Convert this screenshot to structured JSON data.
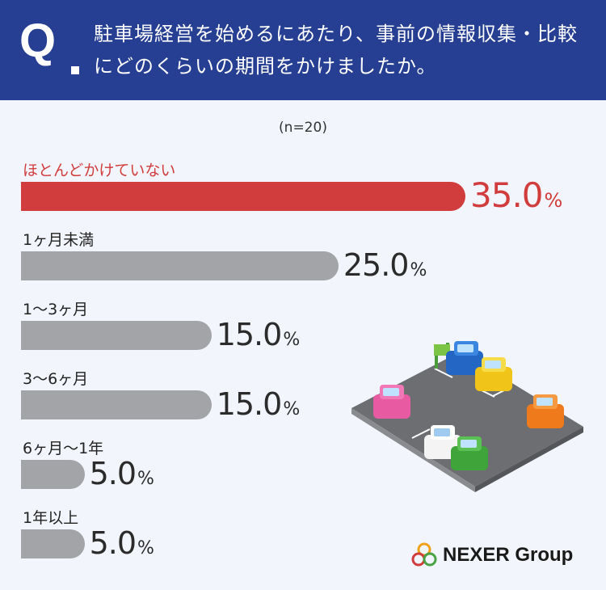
{
  "header": {
    "q_mark": "Q",
    "question": "駐車場経営を始めるにあたり、事前の情報収集・比較にどのくらいの期間をかけましたか。"
  },
  "sample_size": "(n=20)",
  "colors": {
    "header_bg": "#263f92",
    "highlight": "#d13c3c",
    "bar": "#a3a4a8",
    "background": "#f2f5fb"
  },
  "chart_data": {
    "type": "bar",
    "orientation": "horizontal",
    "categories": [
      "ほとんどかけていない",
      "1ヶ月未満",
      "1〜3ヶ月",
      "3〜6ヶ月",
      "6ヶ月〜1年",
      "1年以上"
    ],
    "values": [
      35.0,
      25.0,
      15.0,
      15.0,
      5.0,
      5.0
    ],
    "value_labels": [
      "35.0",
      "25.0",
      "15.0",
      "15.0",
      "5.0",
      "5.0"
    ],
    "unit": "%",
    "highlight_index": 0
  },
  "illustration": "parking-lot-with-cars",
  "logo": {
    "text": "NEXER Group",
    "icon": "nexer-circles-logo"
  }
}
